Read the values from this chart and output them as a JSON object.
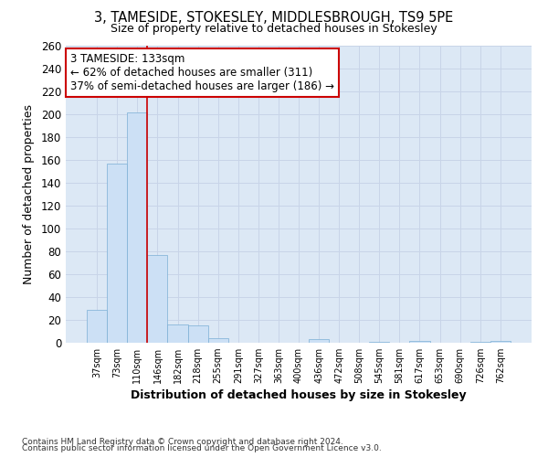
{
  "title": "3, TAMESIDE, STOKESLEY, MIDDLESBROUGH, TS9 5PE",
  "subtitle": "Size of property relative to detached houses in Stokesley",
  "xlabel": "Distribution of detached houses by size in Stokesley",
  "ylabel": "Number of detached properties",
  "bar_labels": [
    "37sqm",
    "73sqm",
    "110sqm",
    "146sqm",
    "182sqm",
    "218sqm",
    "255sqm",
    "291sqm",
    "327sqm",
    "363sqm",
    "400sqm",
    "436sqm",
    "472sqm",
    "508sqm",
    "545sqm",
    "581sqm",
    "617sqm",
    "653sqm",
    "690sqm",
    "726sqm",
    "762sqm"
  ],
  "bar_values": [
    29,
    157,
    202,
    77,
    16,
    15,
    4,
    0,
    0,
    0,
    0,
    3,
    0,
    0,
    1,
    0,
    2,
    0,
    0,
    1,
    2
  ],
  "bar_color": "#cce0f5",
  "bar_edgecolor": "#7bafd4",
  "highlight_line_color": "#cc0000",
  "annotation_text": "3 TAMESIDE: 133sqm\n← 62% of detached houses are smaller (311)\n37% of semi-detached houses are larger (186) →",
  "annotation_box_color": "#ffffff",
  "annotation_border_color": "#cc0000",
  "ylim": [
    0,
    260
  ],
  "yticks": [
    0,
    20,
    40,
    60,
    80,
    100,
    120,
    140,
    160,
    180,
    200,
    220,
    240,
    260
  ],
  "grid_color": "#c8d4e8",
  "background_color": "#dce8f5",
  "footer_line1": "Contains HM Land Registry data © Crown copyright and database right 2024.",
  "footer_line2": "Contains public sector information licensed under the Open Government Licence v3.0."
}
